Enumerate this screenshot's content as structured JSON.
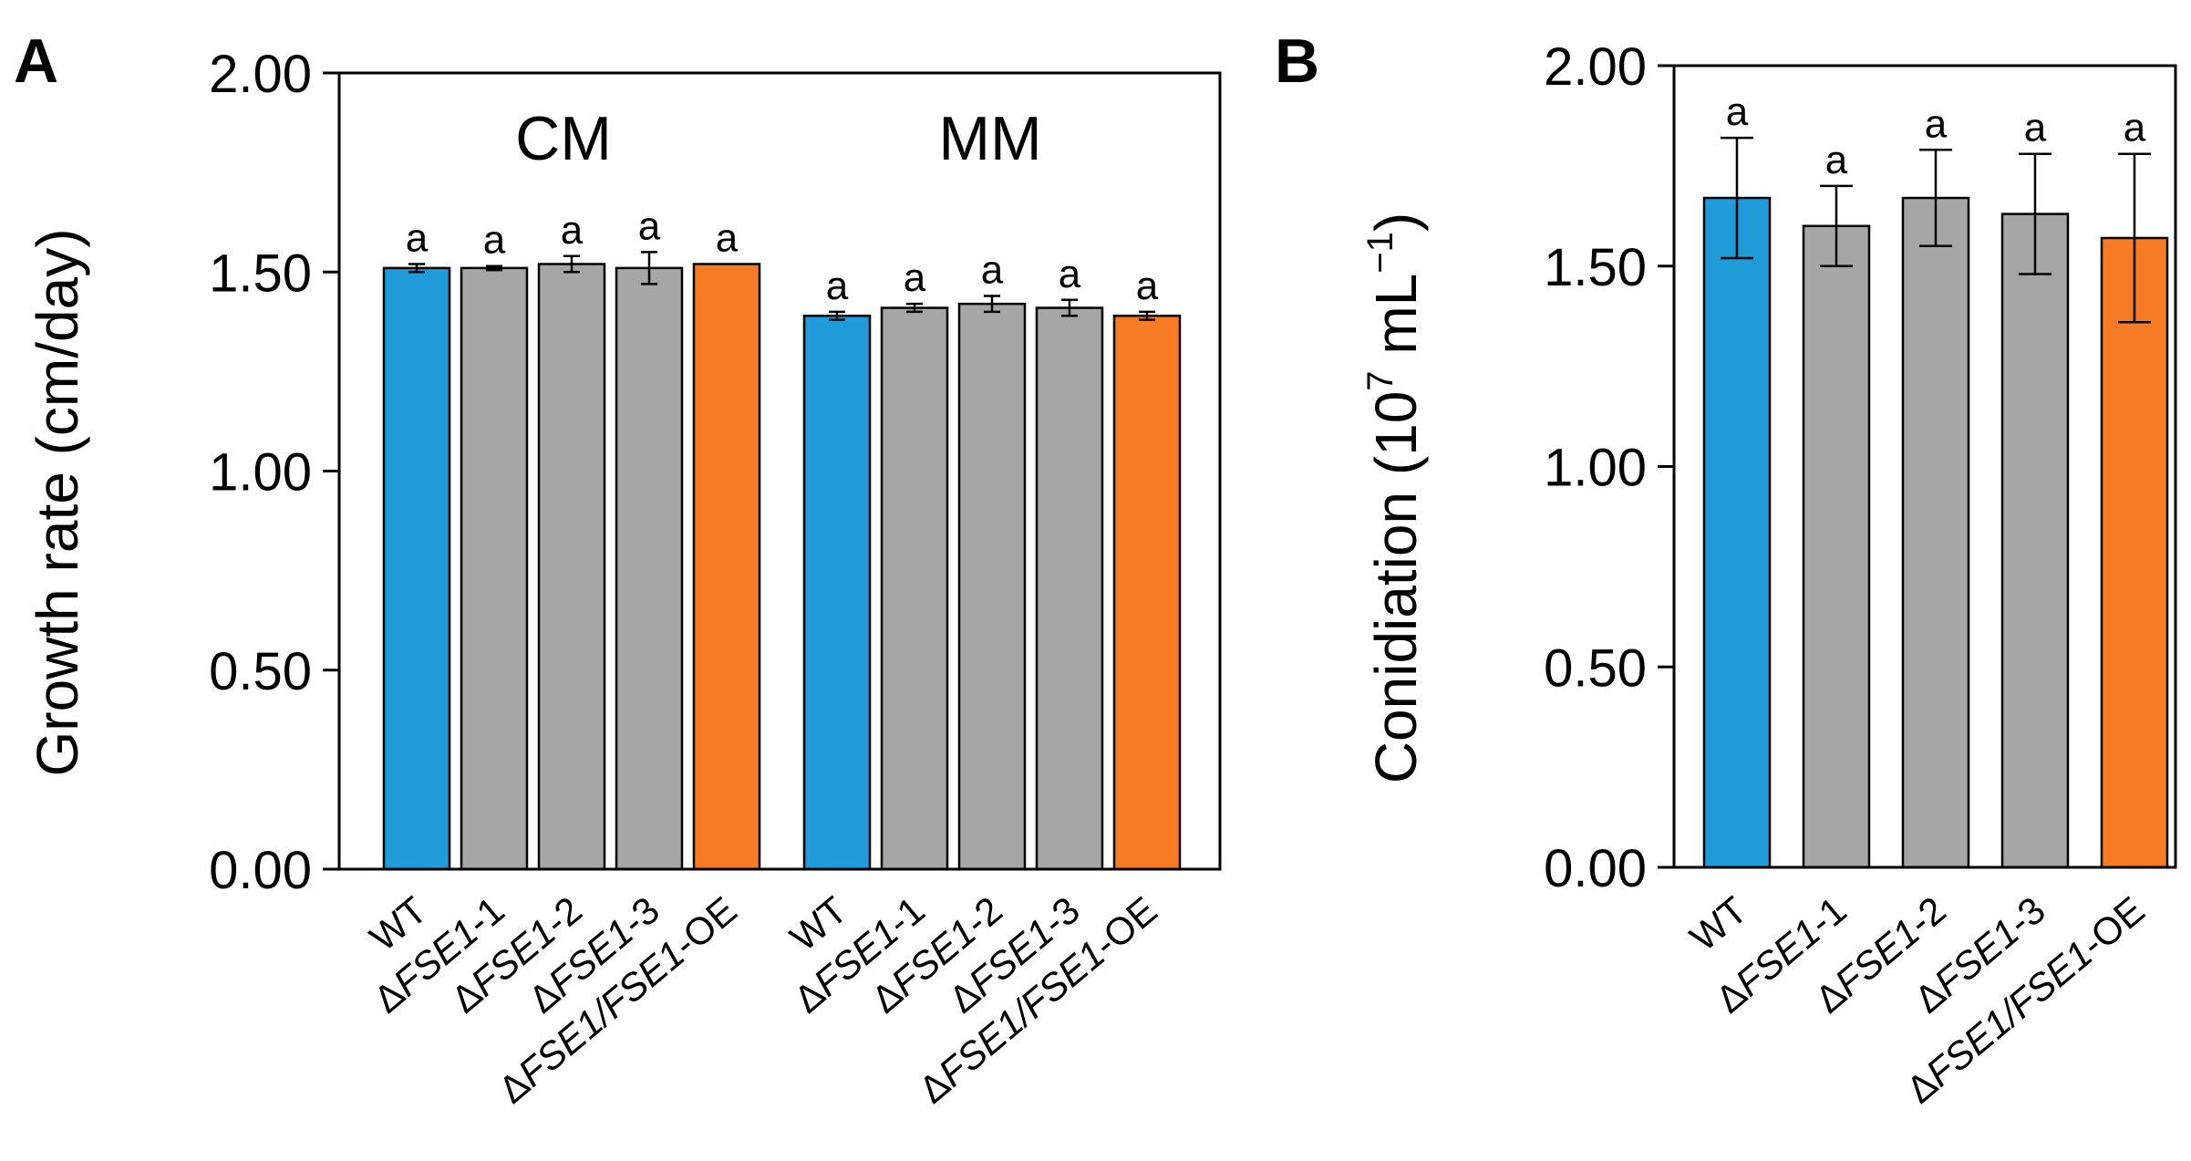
{
  "colors": {
    "wt": "#1f9bd9",
    "mutant": "#a6a6a6",
    "overexpression": "#f77b24",
    "axis": "#000000"
  },
  "chart_data": [
    {
      "panel_label": "A",
      "type": "bar",
      "ylabel": "Growth rate (cm/day)",
      "ylim": [
        0,
        2.0
      ],
      "yticks": [
        "0.00",
        "0.50",
        "1.00",
        "1.50",
        "2.00"
      ],
      "grid": false,
      "groups": [
        {
          "name": "CM",
          "categories": [
            {
              "prefix": "",
              "italic": "",
              "suffix": "WT"
            },
            {
              "prefix": "Δ",
              "italic": "FSE1",
              "suffix": "-1"
            },
            {
              "prefix": "Δ",
              "italic": "FSE1",
              "suffix": "-2"
            },
            {
              "prefix": "Δ",
              "italic": "FSE1",
              "suffix": "-3"
            },
            {
              "prefix": "Δ",
              "italic": "FSE1/FSE1",
              "suffix": "-OE"
            }
          ],
          "values": [
            1.51,
            1.51,
            1.52,
            1.51,
            1.52
          ],
          "errors": [
            0.01,
            0.005,
            0.02,
            0.04,
            0.0
          ],
          "significance": [
            "a",
            "a",
            "a",
            "a",
            "a"
          ]
        },
        {
          "name": "MM",
          "categories": [
            {
              "prefix": "",
              "italic": "",
              "suffix": "WT"
            },
            {
              "prefix": "Δ",
              "italic": "FSE1",
              "suffix": "-1"
            },
            {
              "prefix": "Δ",
              "italic": "FSE1",
              "suffix": "-2"
            },
            {
              "prefix": "Δ",
              "italic": "FSE1",
              "suffix": "-3"
            },
            {
              "prefix": "Δ",
              "italic": "FSE1/FSE1",
              "suffix": "-OE"
            }
          ],
          "values": [
            1.39,
            1.41,
            1.42,
            1.41,
            1.39
          ],
          "errors": [
            0.01,
            0.01,
            0.02,
            0.02,
            0.01
          ],
          "significance": [
            "a",
            "a",
            "a",
            "a",
            "a"
          ]
        }
      ]
    },
    {
      "panel_label": "B",
      "type": "bar",
      "ylabel": "Conidiation (10",
      "ylabel_sup": "7",
      "ylabel_tail": " mL",
      "ylabel_sup2": "−1",
      "ylabel_end": ")",
      "ylim": [
        0,
        2.0
      ],
      "yticks": [
        "0.00",
        "0.50",
        "1.00",
        "1.50",
        "2.00"
      ],
      "grid": false,
      "categories": [
        {
          "prefix": "",
          "italic": "",
          "suffix": "WT"
        },
        {
          "prefix": "Δ",
          "italic": "FSE1",
          "suffix": "-1"
        },
        {
          "prefix": "Δ",
          "italic": "FSE1",
          "suffix": "-2"
        },
        {
          "prefix": "Δ",
          "italic": "FSE1",
          "suffix": "-3"
        },
        {
          "prefix": "Δ",
          "italic": "FSE1/FSE1",
          "suffix": "-OE"
        }
      ],
      "values": [
        1.67,
        1.6,
        1.67,
        1.63,
        1.57
      ],
      "errors": [
        0.15,
        0.1,
        0.12,
        0.15,
        0.21
      ],
      "significance": [
        "a",
        "a",
        "a",
        "a",
        "a"
      ]
    }
  ]
}
